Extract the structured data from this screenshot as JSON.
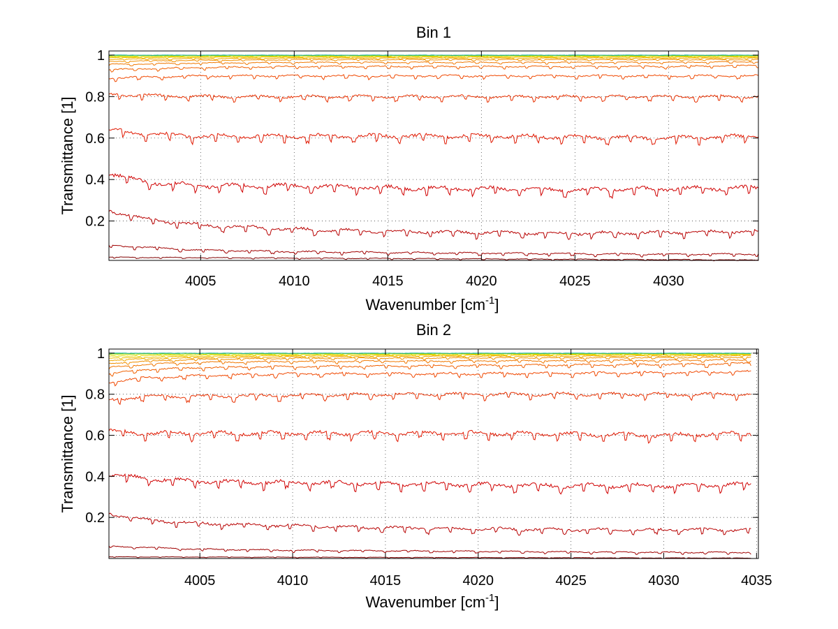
{
  "chart_data": [
    {
      "type": "line",
      "title": "Bin 1",
      "xlabel": "Wavenumber [cm",
      "xlabel_sup": "-1",
      "xlabel_end": "]",
      "ylabel": "Transmittance [1]",
      "xlim": [
        4000.1,
        4034.8
      ],
      "ylim": [
        0.01,
        1.02
      ],
      "xticks": [
        4005,
        4010,
        4015,
        4020,
        4025,
        4030
      ],
      "xtick_labels": [
        "4005",
        "4010",
        "4015",
        "4020",
        "4025",
        "4030"
      ],
      "yticks": [
        0.2,
        0.4,
        0.6,
        0.8,
        1
      ],
      "ytick_labels": [
        "0.2",
        "0.4",
        "0.6",
        "0.8",
        "1"
      ],
      "grid": true,
      "legend": "none",
      "series": [
        {
          "x": [
            4000.1,
            4034.8
          ],
          "y": [
            0.025,
            0.012
          ],
          "color": "#800000"
        },
        {
          "x": [
            4000.1,
            4005,
            4010,
            4020,
            4030,
            4034.8
          ],
          "y": [
            0.082,
            0.06,
            0.052,
            0.045,
            0.04,
            0.04
          ],
          "color": "#a00000"
        },
        {
          "x": [
            4000.1,
            4002,
            4005,
            4010,
            4015,
            4020,
            4025,
            4030,
            4034.8
          ],
          "y": [
            0.25,
            0.21,
            0.18,
            0.16,
            0.15,
            0.145,
            0.14,
            0.145,
            0.15
          ],
          "color": "#b80000"
        },
        {
          "x": [
            4000.1,
            4002,
            4005,
            4010,
            4015,
            4020,
            4025,
            4030,
            4034.8
          ],
          "y": [
            0.43,
            0.39,
            0.37,
            0.37,
            0.36,
            0.355,
            0.35,
            0.355,
            0.36
          ],
          "color": "#d00000"
        },
        {
          "x": [
            4000.1,
            4002,
            4005,
            4010,
            4015,
            4020,
            4025,
            4030,
            4034.8
          ],
          "y": [
            0.64,
            0.62,
            0.61,
            0.61,
            0.61,
            0.61,
            0.605,
            0.6,
            0.61
          ],
          "color": "#e01800"
        },
        {
          "x": [
            4000.1,
            4005,
            4010,
            4015,
            4020,
            4025,
            4030,
            4034.8
          ],
          "y": [
            0.81,
            0.8,
            0.8,
            0.8,
            0.8,
            0.8,
            0.8,
            0.8
          ],
          "color": "#e83000"
        },
        {
          "x": [
            4000.1,
            4005,
            4010,
            4020,
            4030,
            4034.8
          ],
          "y": [
            0.89,
            0.9,
            0.9,
            0.9,
            0.9,
            0.9
          ],
          "color": "#f04800"
        },
        {
          "x": [
            4000.1,
            4005,
            4010,
            4020,
            4030,
            4034.8
          ],
          "y": [
            0.93,
            0.94,
            0.945,
            0.945,
            0.945,
            0.95
          ],
          "color": "#f06000"
        },
        {
          "x": [
            4000.1,
            4005,
            4010,
            4020,
            4030,
            4034.8
          ],
          "y": [
            0.955,
            0.962,
            0.965,
            0.965,
            0.965,
            0.968
          ],
          "color": "#f07800"
        },
        {
          "x": [
            4000.1,
            4005,
            4010,
            4020,
            4030,
            4034.8
          ],
          "y": [
            0.97,
            0.975,
            0.978,
            0.978,
            0.978,
            0.978
          ],
          "color": "#f09000"
        },
        {
          "x": [
            4000.1,
            4005,
            4010,
            4020,
            4030,
            4034.8
          ],
          "y": [
            0.98,
            0.983,
            0.985,
            0.985,
            0.985,
            0.985
          ],
          "color": "#f0a800"
        },
        {
          "x": [
            4000.1,
            4005,
            4010,
            4020,
            4030,
            4034.8
          ],
          "y": [
            0.987,
            0.99,
            0.99,
            0.99,
            0.99,
            0.99
          ],
          "color": "#f0c000"
        },
        {
          "x": [
            4000.1,
            4005,
            4010,
            4020,
            4030,
            4034.8
          ],
          "y": [
            0.992,
            0.993,
            0.994,
            0.994,
            0.994,
            0.994
          ],
          "color": "#e8d800"
        },
        {
          "x": [
            4000.1,
            4005,
            4010,
            4020,
            4030,
            4034.8
          ],
          "y": [
            0.996,
            0.997,
            0.997,
            0.997,
            0.997,
            0.997
          ],
          "color": "#c0e000"
        },
        {
          "x": [
            4000.1,
            4005,
            4010,
            4020,
            4030,
            4034.8
          ],
          "y": [
            0.999,
            0.999,
            0.999,
            0.999,
            0.999,
            0.999
          ],
          "color": "#60d040"
        },
        {
          "x": [
            4000.1,
            4005,
            4010,
            4020,
            4030,
            4034.8
          ],
          "y": [
            1.0,
            1.0,
            1.0,
            1.0,
            1.0,
            1.0
          ],
          "color": "#20b0a0"
        }
      ]
    },
    {
      "type": "line",
      "title": "Bin 2",
      "xlabel": "Wavenumber [cm",
      "xlabel_sup": "-1",
      "xlabel_end": "]",
      "ylabel": "Transmittance [1]",
      "xlim": [
        4000.1,
        4035.1
      ],
      "ylim": [
        0.0,
        1.02
      ],
      "xticks": [
        4005,
        4010,
        4015,
        4020,
        4025,
        4030,
        4035
      ],
      "xtick_labels": [
        "4005",
        "4010",
        "4015",
        "4020",
        "4025",
        "4030",
        "4035"
      ],
      "yticks": [
        0.2,
        0.4,
        0.6,
        0.8,
        1
      ],
      "ytick_labels": [
        "0.2",
        "0.4",
        "0.6",
        "0.8",
        "1"
      ],
      "grid": true,
      "legend": "none",
      "series": [
        {
          "x": [
            4000.1,
            4034.7
          ],
          "y": [
            0.008,
            0.002
          ],
          "color": "#800000"
        },
        {
          "x": [
            4000.1,
            4005,
            4010,
            4020,
            4030,
            4034.7
          ],
          "y": [
            0.06,
            0.045,
            0.04,
            0.035,
            0.03,
            0.03
          ],
          "color": "#a00000"
        },
        {
          "x": [
            4000.1,
            4002,
            4005,
            4010,
            4015,
            4020,
            4025,
            4030,
            4034.7
          ],
          "y": [
            0.22,
            0.19,
            0.17,
            0.16,
            0.15,
            0.145,
            0.14,
            0.14,
            0.14
          ],
          "color": "#b80000"
        },
        {
          "x": [
            4000.1,
            4002,
            4005,
            4010,
            4015,
            4020,
            4025,
            4030,
            4034.7
          ],
          "y": [
            0.41,
            0.39,
            0.375,
            0.37,
            0.365,
            0.36,
            0.355,
            0.355,
            0.36
          ],
          "color": "#d00000"
        },
        {
          "x": [
            4000.1,
            4002,
            4005,
            4010,
            4015,
            4020,
            4025,
            4030,
            4034.7
          ],
          "y": [
            0.62,
            0.61,
            0.61,
            0.61,
            0.61,
            0.61,
            0.605,
            0.6,
            0.61
          ],
          "color": "#e01800"
        },
        {
          "x": [
            4000.1,
            4002,
            4005,
            4010,
            4015,
            4020,
            4025,
            4030,
            4034.7
          ],
          "y": [
            0.77,
            0.79,
            0.79,
            0.795,
            0.8,
            0.8,
            0.8,
            0.8,
            0.8
          ],
          "color": "#e83000"
        },
        {
          "x": [
            4000.1,
            4002,
            4005,
            4010,
            4020,
            4030,
            4034.7
          ],
          "y": [
            0.86,
            0.88,
            0.89,
            0.9,
            0.9,
            0.905,
            0.91
          ],
          "color": "#f04800"
        },
        {
          "x": [
            4000.1,
            4002,
            4005,
            4010,
            4020,
            4030,
            4034.7
          ],
          "y": [
            0.9,
            0.92,
            0.93,
            0.935,
            0.94,
            0.945,
            0.95
          ],
          "color": "#f06000"
        },
        {
          "x": [
            4000.1,
            4002,
            4005,
            4010,
            4020,
            4030,
            4034.7
          ],
          "y": [
            0.93,
            0.945,
            0.955,
            0.96,
            0.962,
            0.965,
            0.967
          ],
          "color": "#f07800"
        },
        {
          "x": [
            4000.1,
            4002,
            4005,
            4010,
            4020,
            4030,
            4034.7
          ],
          "y": [
            0.95,
            0.96,
            0.97,
            0.975,
            0.977,
            0.978,
            0.98
          ],
          "color": "#f09000"
        },
        {
          "x": [
            4000.1,
            4002,
            4005,
            4010,
            4020,
            4030,
            4034.7
          ],
          "y": [
            0.965,
            0.972,
            0.978,
            0.982,
            0.985,
            0.986,
            0.987
          ],
          "color": "#f0a800"
        },
        {
          "x": [
            4000.1,
            4002,
            4005,
            4010,
            4020,
            4030,
            4034.7
          ],
          "y": [
            0.975,
            0.98,
            0.985,
            0.988,
            0.99,
            0.991,
            0.992
          ],
          "color": "#f0c000"
        },
        {
          "x": [
            4000.1,
            4002,
            4005,
            4010,
            4020,
            4030,
            4034.7
          ],
          "y": [
            0.985,
            0.988,
            0.991,
            0.993,
            0.994,
            0.995,
            0.995
          ],
          "color": "#e8d800"
        },
        {
          "x": [
            4000.1,
            4005,
            4010,
            4020,
            4030,
            4034.7
          ],
          "y": [
            0.994,
            0.996,
            0.997,
            0.997,
            0.997,
            0.997
          ],
          "color": "#c0e000"
        },
        {
          "x": [
            4000.1,
            4005,
            4010,
            4020,
            4030,
            4034.7
          ],
          "y": [
            0.998,
            0.999,
            0.999,
            0.999,
            0.999,
            0.999
          ],
          "color": "#60d040"
        },
        {
          "x": [
            4000.1,
            4005,
            4010,
            4020,
            4030,
            4034.7
          ],
          "y": [
            1.0,
            1.0,
            1.0,
            1.0,
            1.0,
            1.0
          ],
          "color": "#20b0a0"
        }
      ]
    }
  ]
}
